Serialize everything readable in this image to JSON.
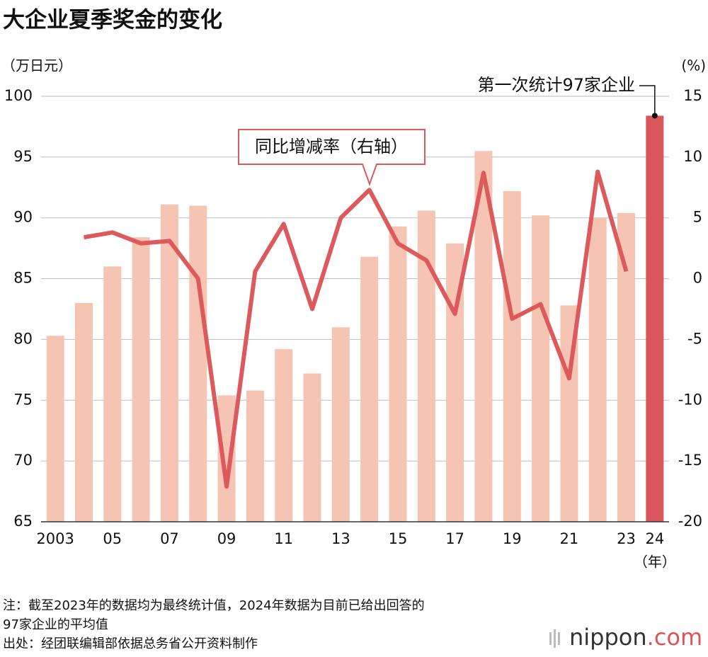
{
  "chart_data": {
    "type": "combo",
    "title": "大企业夏季奖金的变化",
    "y_label": "（万日元）",
    "y2_label": "(%)",
    "x_label": "（年）",
    "categories": [
      "2003",
      null,
      "05",
      null,
      "07",
      null,
      "09",
      null,
      "11",
      null,
      "13",
      null,
      "15",
      null,
      "17",
      null,
      "19",
      null,
      "21",
      null,
      "23",
      "24"
    ],
    "series": [
      {
        "type": "bar",
        "axis": "y",
        "color": "#f5c4b3",
        "colors": [
          "#f5c4b3",
          "#f5c4b3",
          "#f5c4b3",
          "#f5c4b3",
          "#f5c4b3",
          "#f5c4b3",
          "#f5c4b3",
          "#f5c4b3",
          "#f5c4b3",
          "#f5c4b3",
          "#f5c4b3",
          "#f5c4b3",
          "#f5c4b3",
          "#f5c4b3",
          "#f5c4b3",
          "#f5c4b3",
          "#f5c4b3",
          "#f5c4b3",
          "#f5c4b3",
          "#f5c4b3",
          "#f5c4b3",
          "#d9575a"
        ],
        "values": [
          80.3,
          83.0,
          86.0,
          88.4,
          91.1,
          91.0,
          75.4,
          75.8,
          79.2,
          77.2,
          81.0,
          86.8,
          89.3,
          90.6,
          87.9,
          95.5,
          92.2,
          90.2,
          82.8,
          90.0,
          90.4,
          98.4
        ]
      },
      {
        "type": "line",
        "axis": "y2",
        "color": "#dd5a5c",
        "values": [
          null,
          3.4,
          3.8,
          2.9,
          3.1,
          0.0,
          -17.1,
          0.6,
          4.5,
          -2.5,
          5.0,
          7.3,
          2.9,
          1.5,
          -2.9,
          8.7,
          -3.3,
          -2.1,
          -8.2,
          8.8,
          0.6,
          null
        ]
      }
    ],
    "ylim": [
      65,
      100
    ],
    "yticks": [
      65,
      70,
      75,
      80,
      85,
      90,
      95,
      100
    ],
    "y2lim": [
      -20,
      15
    ],
    "y2ticks": [
      -20,
      -15,
      -10,
      -5,
      0,
      5,
      10,
      15
    ],
    "grid": true,
    "annotations": [
      "同比增减率（右轴）",
      "第一次统计97家企业"
    ]
  },
  "notes": [
    "注：截至2023年的数据均为最终统计值，2024年数据为目前已给出回答的",
    "97家企业的平均值",
    "出处：经团联编辑部依据总务省公开资料制作"
  ],
  "logo": {
    "name": "nippon",
    "suffix": ".com"
  }
}
